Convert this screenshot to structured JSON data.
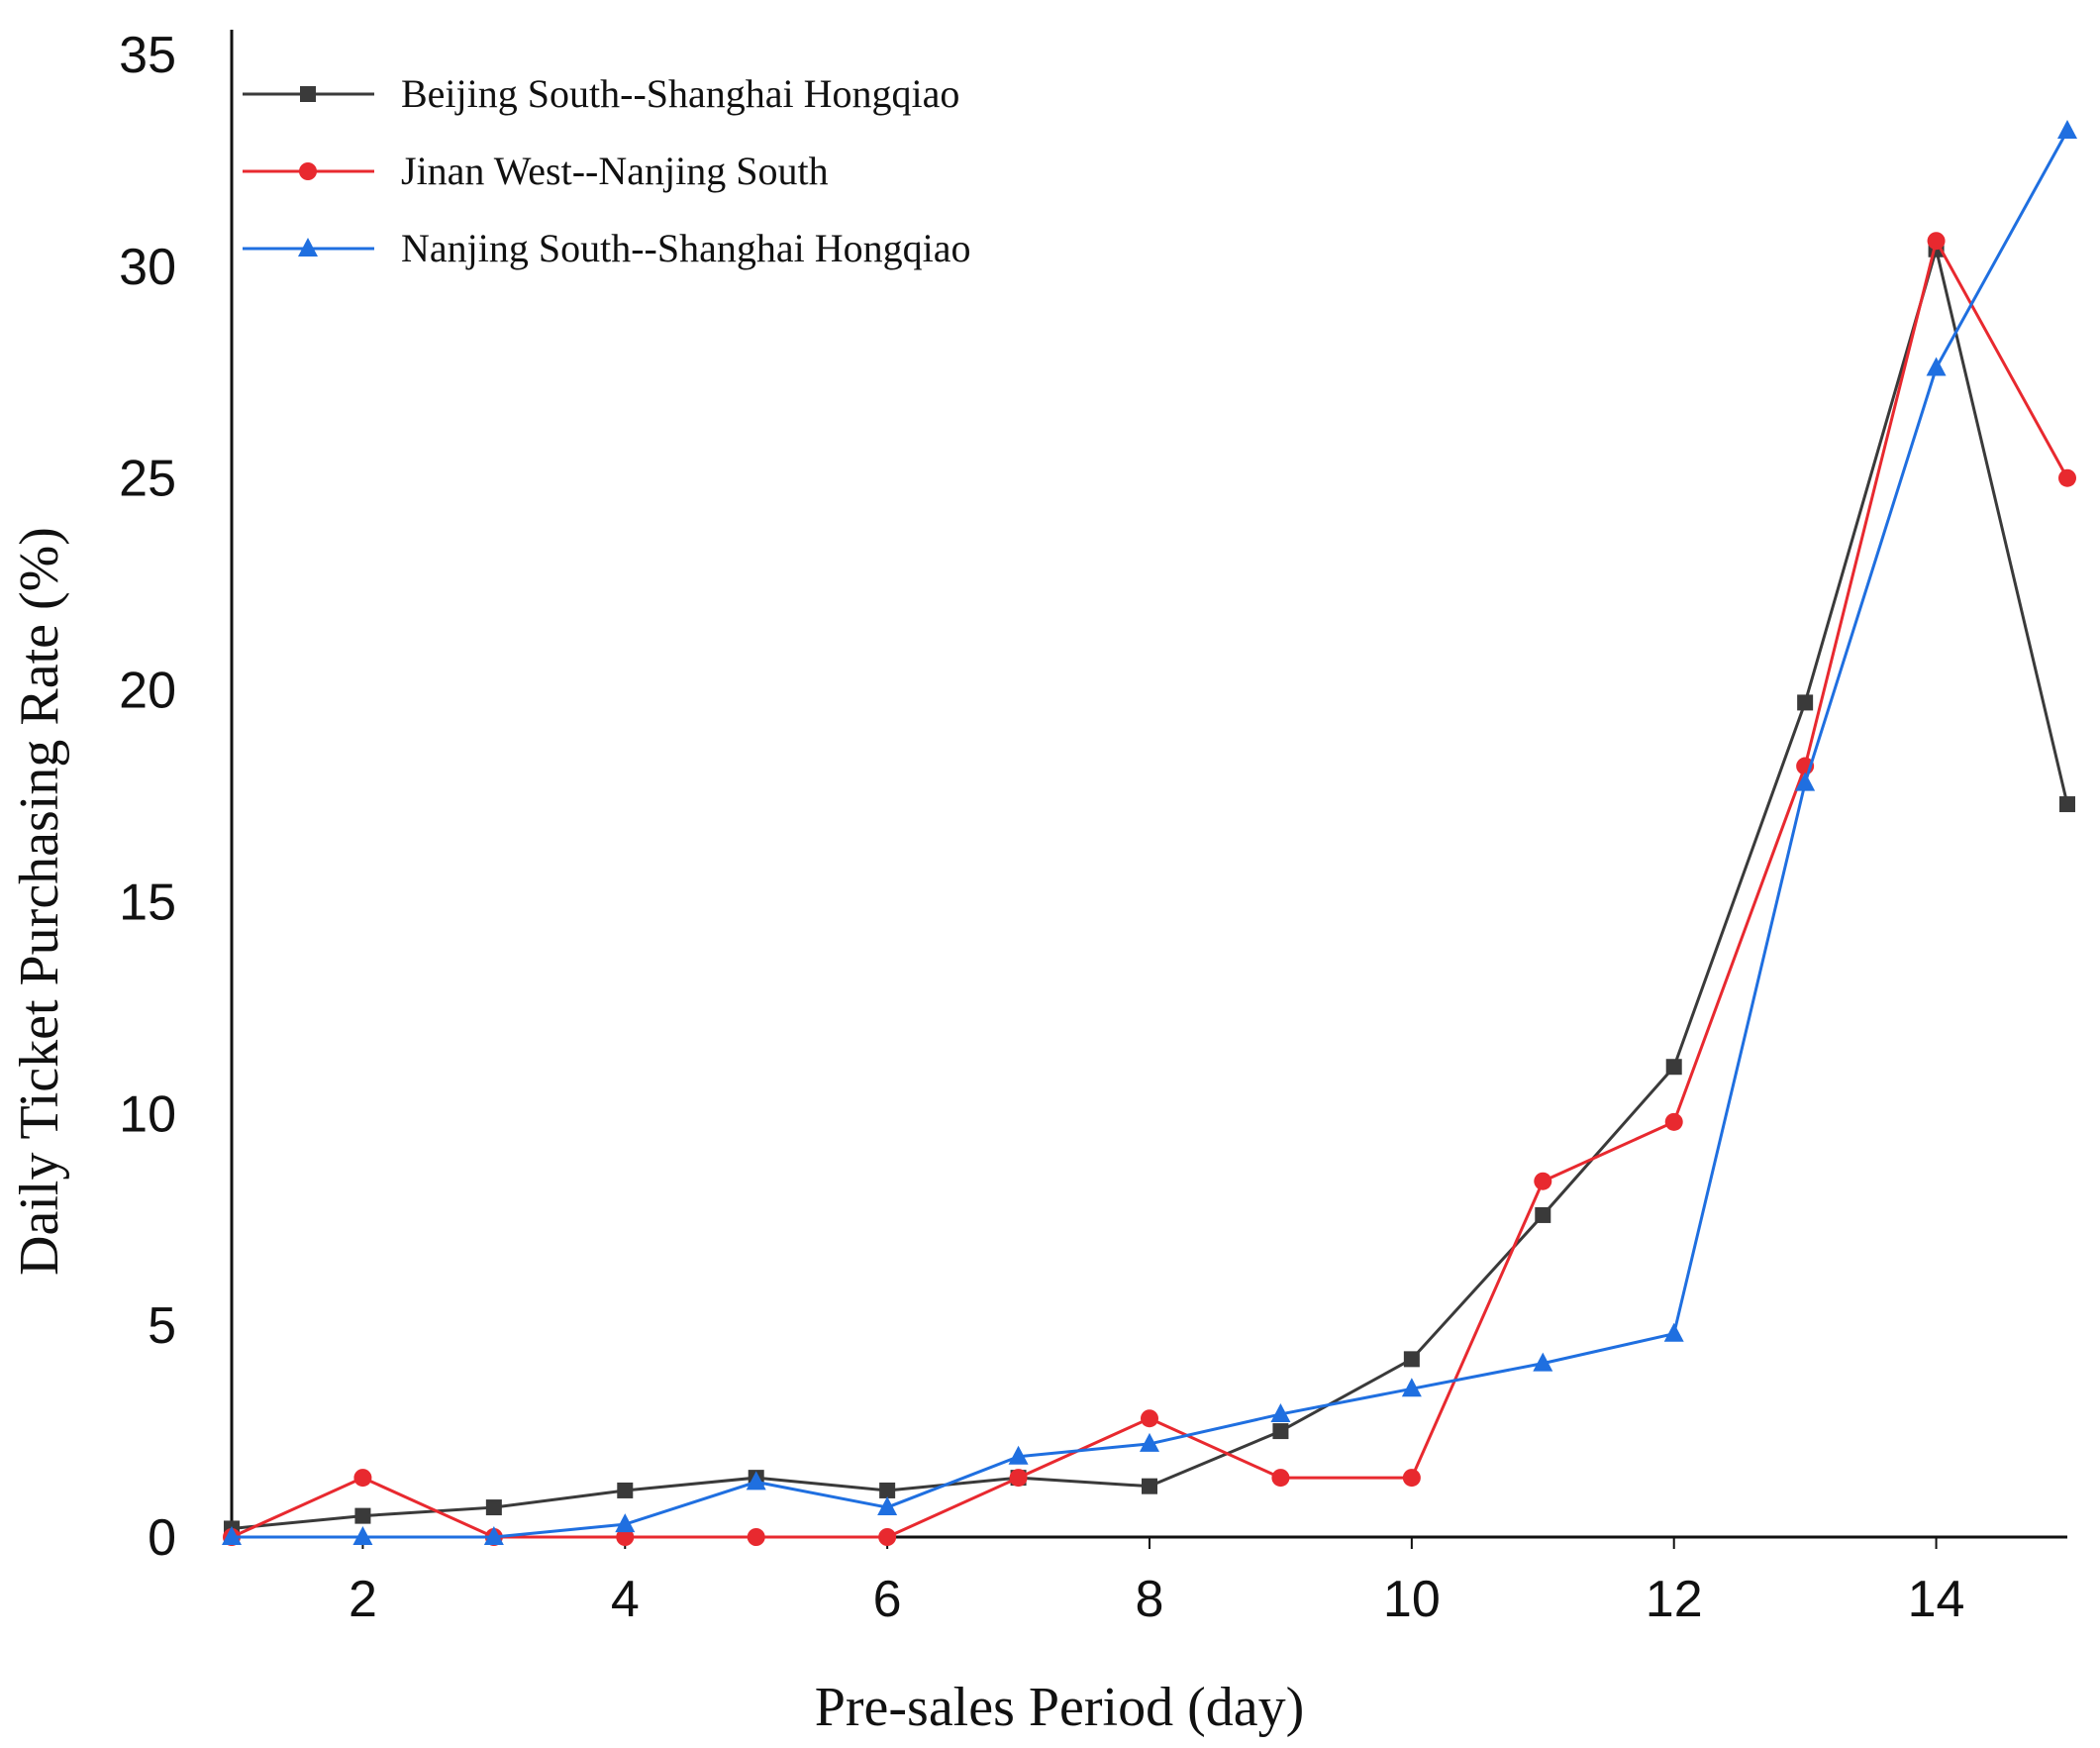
{
  "chart_data": {
    "type": "line",
    "title": "",
    "xlabel": "Pre-sales Period (day)",
    "ylabel": "Daily Ticket Purchasing Rate (%)",
    "xlim": [
      1,
      15
    ],
    "ylim": [
      0,
      35
    ],
    "xticks": [
      2,
      4,
      6,
      8,
      10,
      12,
      14
    ],
    "yticks": [
      0,
      5,
      10,
      15,
      20,
      25,
      30,
      35
    ],
    "grid": false,
    "legend_position": "top-left",
    "x": [
      1,
      2,
      3,
      4,
      5,
      6,
      7,
      8,
      9,
      10,
      11,
      12,
      13,
      14,
      15
    ],
    "series": [
      {
        "name": "Beijing South--Shanghai Hongqiao",
        "color": "#3a3a3a",
        "marker": "square",
        "values": [
          0.2,
          0.5,
          0.7,
          1.1,
          1.4,
          1.1,
          1.4,
          1.2,
          2.5,
          4.2,
          7.6,
          11.1,
          19.7,
          30.4,
          17.3
        ]
      },
      {
        "name": "Jinan West--Nanjing South",
        "color": "#e8292f",
        "marker": "circle",
        "values": [
          0.0,
          1.4,
          0.0,
          0.0,
          0.0,
          0.0,
          1.4,
          2.8,
          1.4,
          1.4,
          8.4,
          9.8,
          18.2,
          30.6,
          25.0
        ]
      },
      {
        "name": "Nanjing South--Shanghai Hongqiao",
        "color": "#1f6fe0",
        "marker": "triangle",
        "values": [
          0.0,
          0.0,
          0.0,
          0.3,
          1.3,
          0.7,
          1.9,
          2.2,
          2.9,
          3.5,
          4.1,
          4.8,
          17.8,
          27.6,
          33.2
        ]
      }
    ]
  }
}
